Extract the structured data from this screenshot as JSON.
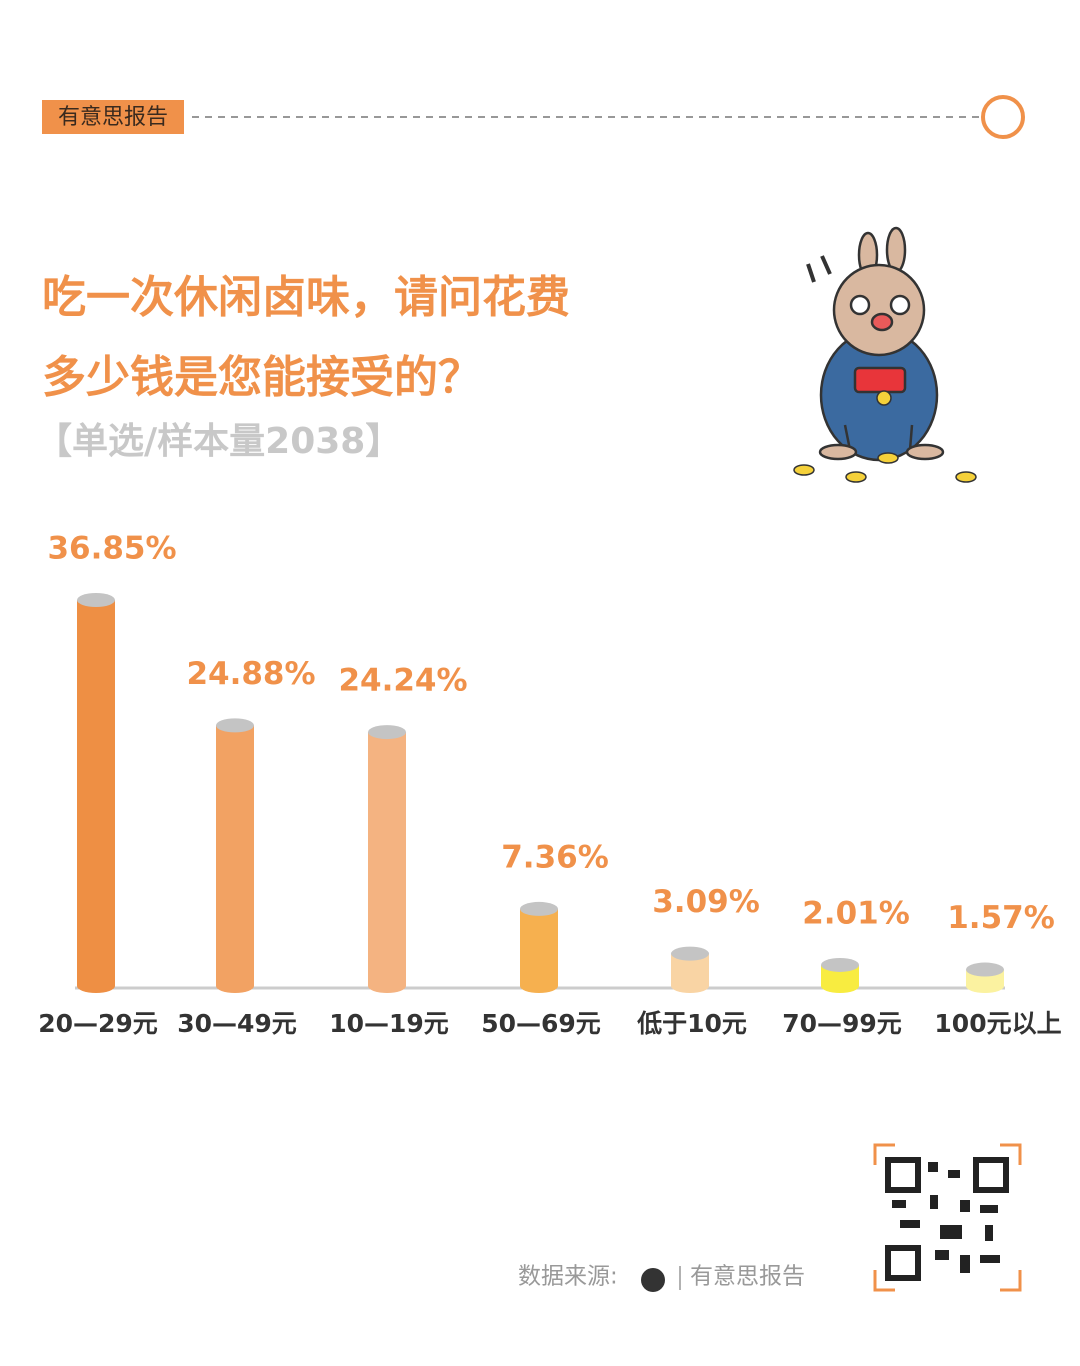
{
  "header": {
    "brand": "有意思报告"
  },
  "chart_data": {
    "type": "bar",
    "title_lines": [
      "吃一次休闲卤味，请问花费",
      "多少钱是您能接受的？"
    ],
    "subtitle": "【单选/样本量2038】",
    "categories": [
      "20—29元",
      "30—49元",
      "10—19元",
      "50—69元",
      "低于10元",
      "70—99元",
      "100元以上"
    ],
    "values": [
      36.85,
      24.88,
      24.24,
      7.36,
      3.09,
      2.01,
      1.57
    ],
    "value_labels": [
      "36.85%",
      "24.88%",
      "24.24%",
      "7.36%",
      "3.09%",
      "2.01%",
      "1.57%"
    ],
    "colors": [
      "#ee8f44",
      "#f2a263",
      "#f4b381",
      "#f6b04f",
      "#f9d4a4",
      "#f8ec40",
      "#fbf2a0"
    ]
  },
  "footer": {
    "source_label": "数据来源:",
    "source_name": "有意思报告"
  }
}
